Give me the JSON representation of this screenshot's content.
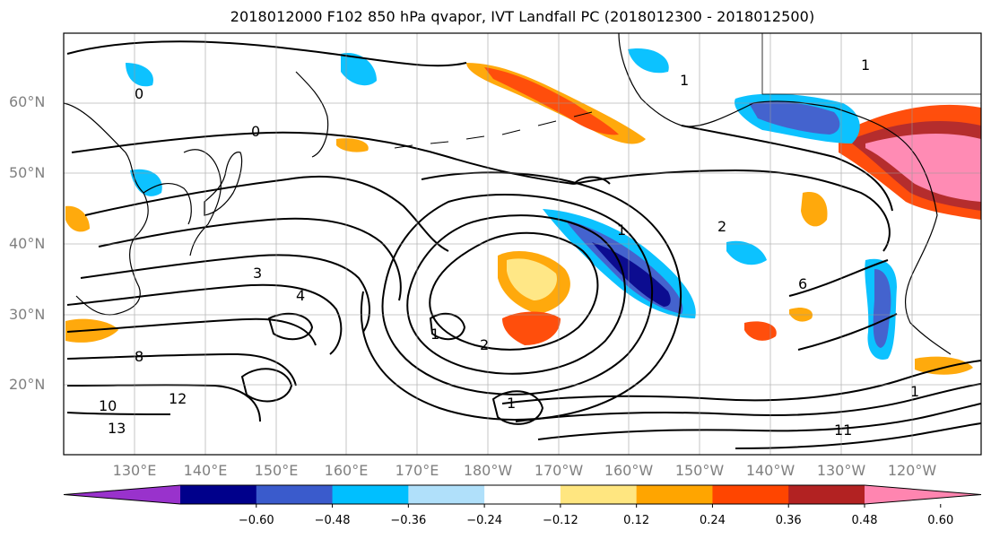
{
  "title": "2018012000 F102 850 hPa qvapor, IVT Landfall PC (2018012300 - 2018012500)",
  "map": {
    "lat_labels": [
      "60°N",
      "50°N",
      "40°N",
      "30°N",
      "20°N"
    ],
    "lon_labels": [
      "130°E",
      "140°E",
      "150°E",
      "160°E",
      "170°E",
      "180°W",
      "170°W",
      "160°W",
      "150°W",
      "140°W",
      "130°W",
      "120°W"
    ],
    "grid": true,
    "contour_labels": [
      "0",
      "0",
      "1",
      "1",
      "1",
      "1",
      "2",
      "2",
      "3",
      "4",
      "6",
      "8",
      "10",
      "11",
      "12",
      "13",
      "1",
      "1"
    ]
  },
  "colorbar": {
    "ticks": [
      "−0.60",
      "−0.48",
      "−0.36",
      "−0.24",
      "−0.12",
      "0.12",
      "0.24",
      "0.36",
      "0.48",
      "0.60"
    ],
    "colors": [
      "#9932cc",
      "#00008b",
      "#3a5bcc",
      "#00bfff",
      "#b0e0fa",
      "#ffffff",
      "#ffe680",
      "#ffa500",
      "#ff4500",
      "#b22222",
      "#ff85b0"
    ]
  }
}
